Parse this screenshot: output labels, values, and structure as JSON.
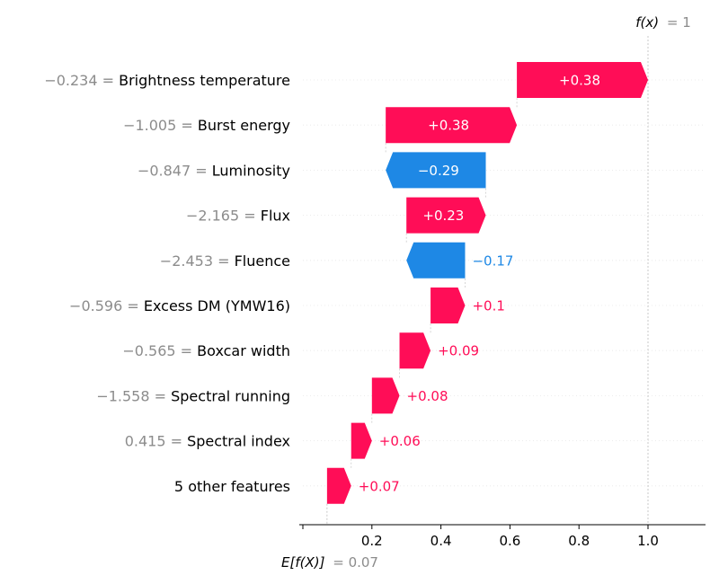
{
  "chart_data": {
    "type": "waterfall",
    "base_value": 0.07,
    "output_value": 1,
    "base_label": "E[f(X)]",
    "base_value_text": "0.07",
    "output_label": "f(x)",
    "output_value_text": "1",
    "xlim": [
      0.0,
      1.15
    ],
    "xticks": [
      0.0,
      0.2,
      0.4,
      0.6,
      0.8,
      1.0
    ],
    "xtick_labels": [
      "",
      "0.2",
      "0.4",
      "0.6",
      "0.8",
      "1.0"
    ],
    "features": [
      {
        "name": "Brightness temperature",
        "value": "−0.234",
        "contribution": 0.38,
        "label": "+0.38"
      },
      {
        "name": "Burst energy",
        "value": "−1.005",
        "contribution": 0.38,
        "label": "+0.38"
      },
      {
        "name": "Luminosity",
        "value": "−0.847",
        "contribution": -0.29,
        "label": "−0.29"
      },
      {
        "name": "Flux",
        "value": "−2.165",
        "contribution": 0.23,
        "label": "+0.23"
      },
      {
        "name": "Fluence",
        "value": "−2.453",
        "contribution": -0.17,
        "label": "−0.17"
      },
      {
        "name": "Excess DM (YMW16)",
        "value": "−0.596",
        "contribution": 0.1,
        "label": "+0.1"
      },
      {
        "name": "Boxcar width",
        "value": "−0.565",
        "contribution": 0.09,
        "label": "+0.09"
      },
      {
        "name": "Spectral running",
        "value": "−1.558",
        "contribution": 0.08,
        "label": "+0.08"
      },
      {
        "name": "Spectral index",
        "value": "0.415",
        "contribution": 0.06,
        "label": "+0.06"
      },
      {
        "name": "5 other features",
        "value": "",
        "contribution": 0.07,
        "label": "+0.07"
      }
    ],
    "colors": {
      "positive": "#ff0d57",
      "negative": "#1e88e5",
      "value_text": "#8c8c8c"
    }
  }
}
